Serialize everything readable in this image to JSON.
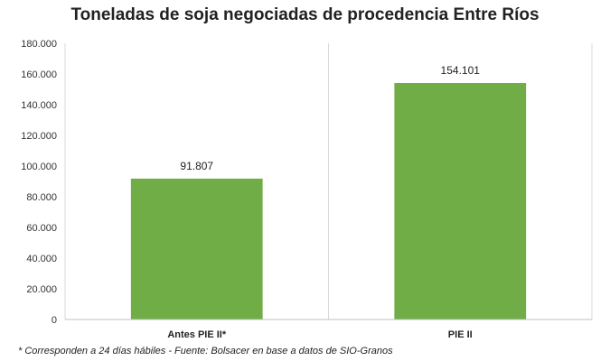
{
  "chart_data": {
    "type": "bar",
    "title": "Toneladas de soja negociadas de procedencia Entre Ríos",
    "categories": [
      "Antes PIE II*",
      "PIE II"
    ],
    "values": [
      91807,
      154101
    ],
    "value_labels": [
      "91.807",
      "154.101"
    ],
    "xlabel": "",
    "ylabel": "",
    "ylim": [
      0,
      180000
    ],
    "yticks": [
      0,
      20000,
      40000,
      60000,
      80000,
      100000,
      120000,
      140000,
      160000,
      180000
    ],
    "ytick_labels": [
      "0",
      "20.000",
      "40.000",
      "60.000",
      "80.000",
      "100.000",
      "120.000",
      "140.000",
      "160.000",
      "180.000"
    ],
    "grid": "vertical category separators",
    "legend": "none",
    "bar_color": "#70AD47",
    "footnote": "* Corresponden a 24 días hábiles - Fuente: Bolsacer en base a datos de SIO-Granos"
  }
}
